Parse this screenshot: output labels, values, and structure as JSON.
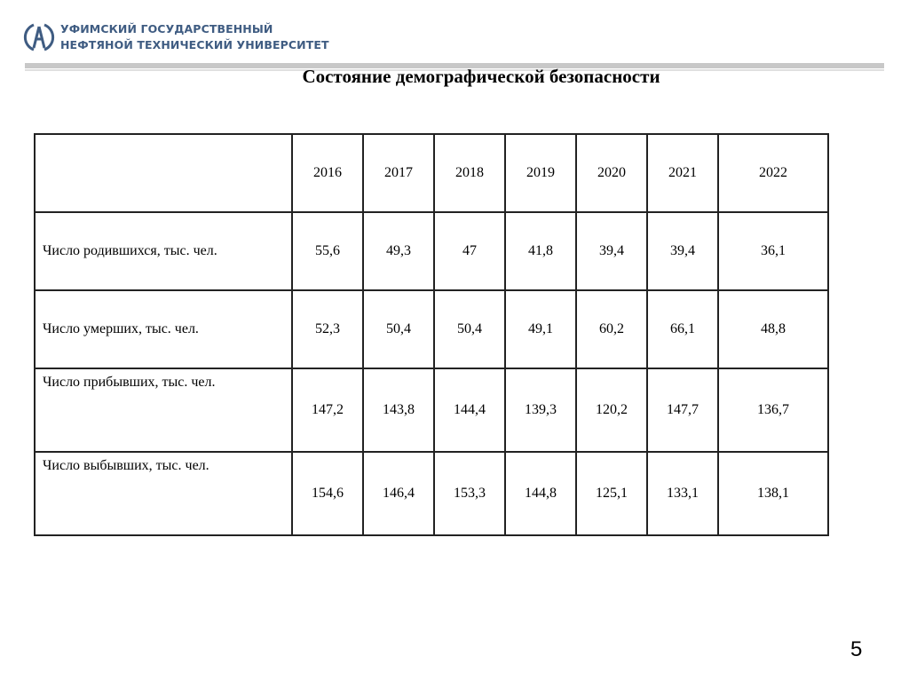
{
  "header": {
    "university_line1": "УФИМСКИЙ ГОСУДАРСТВЕННЫЙ",
    "university_line2": "НЕФТЯНОЙ ТЕХНИЧЕСКИЙ УНИВЕРСИТЕТ",
    "brand_color": "#3f5c82"
  },
  "title": "Состояние демографической безопасности",
  "table": {
    "years": [
      "2016",
      "2017",
      "2018",
      "2019",
      "2020",
      "2021",
      "2022"
    ],
    "rows": [
      {
        "label": "Число родившихся, тыс. чел.",
        "values": [
          "55,6",
          "49,3",
          "47",
          "41,8",
          "39,4",
          "39,4",
          "36,1"
        ]
      },
      {
        "label": "Число умерших, тыс. чел.",
        "values": [
          "52,3",
          "50,4",
          "50,4",
          "49,1",
          "60,2",
          "66,1",
          "48,8"
        ]
      },
      {
        "label": "Число прибывших, тыс. чел.",
        "values": [
          "147,2",
          "143,8",
          "144,4",
          "139,3",
          "120,2",
          "147,7",
          "136,7"
        ]
      },
      {
        "label": "Число выбывших, тыс. чел.",
        "values": [
          "154,6",
          "146,4",
          "153,3",
          "144,8",
          "125,1",
          "133,1",
          "138,1"
        ]
      }
    ]
  },
  "page_number": "5"
}
